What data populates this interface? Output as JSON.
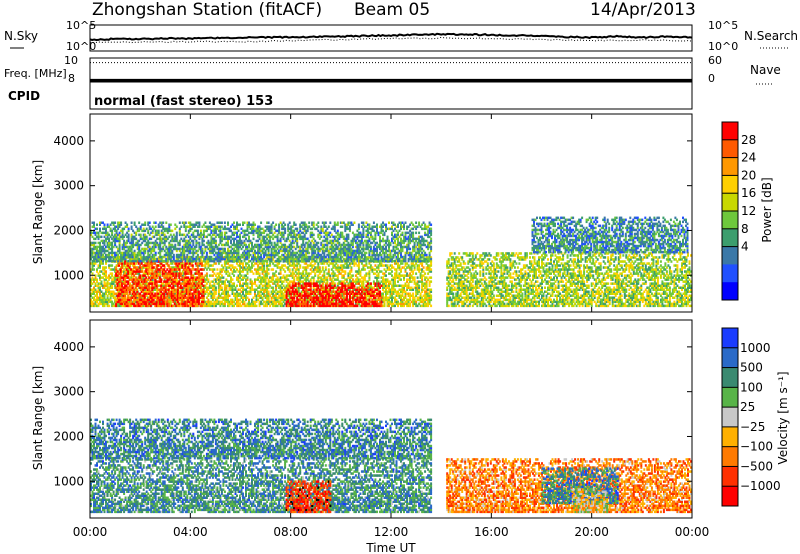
{
  "chart_data": [
    {
      "type": "line",
      "title": "Zhongshan Station (fitACF)",
      "beam": "Beam 05",
      "date": "14/Apr/2013",
      "panel": "noise",
      "ylabel_left": "N.Sky",
      "ylabel_right": "N.Search",
      "left_ticks": [
        "10^5",
        "10^0"
      ],
      "right_ticks": [
        "10^5",
        "10^0"
      ],
      "series": [
        {
          "name": "N.Sky",
          "style": "solid",
          "x": [
            0,
            1,
            2,
            3,
            4,
            5,
            6,
            7,
            8,
            9,
            10,
            11,
            12,
            13,
            14,
            15,
            16,
            17,
            18,
            19,
            20,
            21,
            22,
            23,
            24
          ],
          "values": [
            2.2,
            2.3,
            2.3,
            2.4,
            2.4,
            2.5,
            2.6,
            2.6,
            2.7,
            2.7,
            2.8,
            2.9,
            3.0,
            3.1,
            3.2,
            3.2,
            3.1,
            3.0,
            2.9,
            2.7,
            2.6,
            2.8,
            2.6,
            2.8,
            2.6
          ]
        },
        {
          "name": "N.Search",
          "style": "dotted",
          "x": [
            0,
            2,
            4,
            6,
            8,
            10,
            12,
            14,
            16,
            18,
            20,
            22,
            24
          ],
          "values": [
            1.6,
            1.7,
            1.8,
            1.8,
            2.0,
            2.2,
            2.4,
            2.5,
            2.4,
            2.2,
            2.0,
            2.1,
            2.0
          ]
        }
      ]
    },
    {
      "type": "line",
      "panel": "frequency",
      "ylabel_left": "Freq. [MHz]",
      "ylabel_right": "Nave",
      "left_ticks": [
        "10",
        "8"
      ],
      "right_ticks": [
        "60",
        "0"
      ],
      "series": [
        {
          "name": "Freq",
          "style": "solid",
          "x": [
            0,
            24
          ],
          "values": [
            8.1,
            8.1
          ]
        },
        {
          "name": "Nave",
          "style": "dotted",
          "x": [
            0,
            24
          ],
          "values": [
            48,
            48
          ]
        }
      ]
    },
    {
      "panel": "cpid",
      "label": "CPID",
      "text": "normal (fast stereo) 153"
    },
    {
      "type": "heatmap",
      "panel": "power",
      "ylabel": "Slant Range [km]",
      "ylim": [
        180,
        4600
      ],
      "yticks": [
        1000,
        2000,
        3000,
        4000
      ],
      "xlim": [
        0,
        24
      ],
      "colorbar_label": "Power [dB]",
      "colorbar_ticks": [
        "28",
        "24",
        "20",
        "16",
        "12",
        "8",
        "4"
      ],
      "colorbar_colors": [
        "#ff0000",
        "#ff5a00",
        "#ff9800",
        "#ffd000",
        "#c8d800",
        "#6ec83c",
        "#3c9e6e",
        "#3a78a8",
        "#2050ff",
        "#0000ff"
      ],
      "regions": [
        {
          "t0": 0.0,
          "t1": 13.6,
          "r0": 300,
          "r1": 1400,
          "level": 0.55
        },
        {
          "t0": 1.0,
          "t1": 4.5,
          "r0": 300,
          "r1": 1300,
          "level": 0.9
        },
        {
          "t0": 7.8,
          "t1": 11.6,
          "r0": 300,
          "r1": 800,
          "level": 0.97
        },
        {
          "t0": 0.0,
          "t1": 13.6,
          "r0": 1300,
          "r1": 2200,
          "level": 0.35
        },
        {
          "t0": 14.2,
          "t1": 24.0,
          "r0": 300,
          "r1": 1500,
          "level": 0.5
        },
        {
          "t0": 17.6,
          "t1": 23.8,
          "r0": 1500,
          "r1": 2300,
          "level": 0.3
        }
      ]
    },
    {
      "type": "heatmap",
      "panel": "velocity",
      "ylabel": "Slant Range [km]",
      "ylim": [
        180,
        4600
      ],
      "yticks": [
        1000,
        2000,
        3000,
        4000
      ],
      "xlim": [
        0,
        24
      ],
      "xticks": [
        "00:00",
        "04:00",
        "08:00",
        "12:00",
        "16:00",
        "20:00",
        "00:00"
      ],
      "xlabel": "Time UT",
      "colorbar_label": "Velocity [m s⁻¹]",
      "colorbar_ticks": [
        "1000",
        "500",
        "100",
        "25",
        "−25",
        "−100",
        "−500",
        "−1000"
      ],
      "colorbar_colors": [
        "#1a3cff",
        "#2a6ac8",
        "#3a8a70",
        "#58b448",
        "#c8c8c8",
        "#ffb000",
        "#ff7a00",
        "#ff3000",
        "#ff0000"
      ],
      "regions": [
        {
          "t0": 0.0,
          "t1": 13.6,
          "r0": 300,
          "r1": 1500,
          "level": 0.72
        },
        {
          "t0": 0.0,
          "t1": 13.6,
          "r0": 1500,
          "r1": 2400,
          "level": 0.75
        },
        {
          "t0": 7.8,
          "t1": 9.6,
          "r0": 300,
          "r1": 1000,
          "level": 0.15
        },
        {
          "t0": 14.2,
          "t1": 24.0,
          "r0": 300,
          "r1": 1500,
          "level": 0.3
        },
        {
          "t0": 18.0,
          "t1": 21.0,
          "r0": 500,
          "r1": 1300,
          "level": 0.75
        },
        {
          "t0": 19.2,
          "t1": 20.6,
          "r0": 300,
          "r1": 800,
          "level": 0.45
        }
      ]
    }
  ]
}
